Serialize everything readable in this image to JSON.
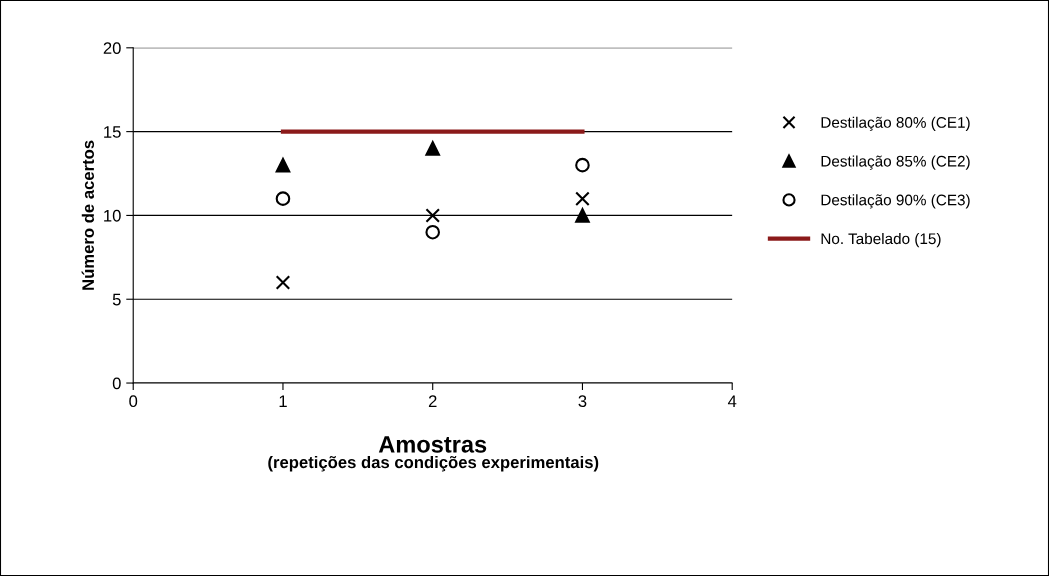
{
  "chart_data": {
    "type": "scatter",
    "xlabel": "Amostras",
    "ylabel": "Número de acertos",
    "annotations": [
      "(repetições das condições experimentais)"
    ],
    "x": [
      1,
      2,
      3
    ],
    "series": [
      {
        "name": "Destilação 80% (CE1)",
        "color": "#000000",
        "marker": "cross",
        "values": [
          6,
          10,
          11
        ]
      },
      {
        "name": "Destilação 85% (CE2)",
        "color": "#000000",
        "marker": "triangle",
        "values": [
          13,
          14,
          10
        ]
      },
      {
        "name": "Destilação 90% (CE3)",
        "color": "#000000",
        "marker": "circle",
        "values": [
          11,
          9,
          13
        ]
      },
      {
        "name": "No. Tabelado (15)",
        "color": "#8b1a1a",
        "type": "line",
        "marker": "none",
        "x": [
          1,
          3
        ],
        "values": [
          15,
          15
        ]
      }
    ],
    "xlim": [
      0,
      4
    ],
    "xticks": [
      0,
      1,
      2,
      3,
      4
    ],
    "ylim": [
      0,
      20
    ],
    "yticks": [
      0,
      5,
      10,
      15,
      20
    ],
    "grid": "y",
    "legend": "right"
  }
}
